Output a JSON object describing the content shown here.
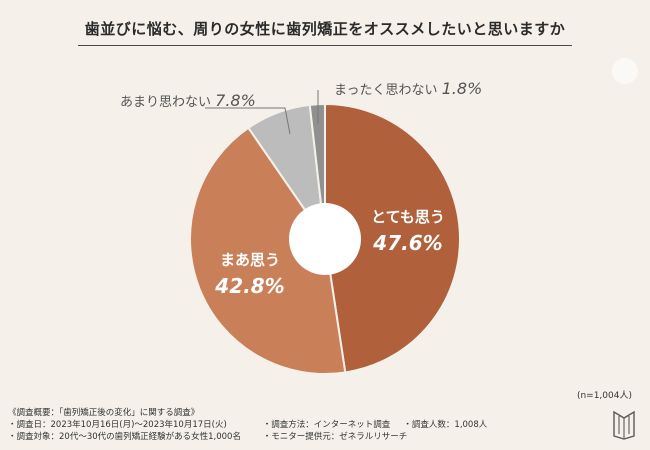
{
  "title": "歯並びに悩む、周りの女性に歯列矯正をオススメしたいと思いますか",
  "sample_note": "(n=1,004人)",
  "survey": {
    "heading": "《調査概要：「歯列矯正後の変化」に関する調査》",
    "date": "・調査日：2023年10月16日(月)〜2023年10月17日(火)",
    "method": "・調査方法：インターネット調査",
    "count": "・調査人数：1,008人",
    "target": "・調査対象：20代〜30代の歯列矯正経験がある女性1,000名",
    "provider": "・モニター提供元：ゼネラルリサーチ"
  },
  "chart_data": {
    "type": "pie",
    "title": "歯並びに悩む、周りの女性に歯列矯正をオススメしたいと思いますか",
    "unit": "%",
    "slices": [
      {
        "label": "とても思う",
        "value": 47.6,
        "value_text": "47.6%",
        "color": "#b0603a"
      },
      {
        "label": "まあ思う",
        "value": 42.8,
        "value_text": "42.8%",
        "color": "#c98058"
      },
      {
        "label": "あまり思わない",
        "value": 7.8,
        "value_text": "7.8%",
        "color": "#bcbcbc"
      },
      {
        "label": "まったく思わない",
        "value": 1.8,
        "value_text": "1.8%",
        "color": "#909090"
      }
    ],
    "legend": "none"
  }
}
